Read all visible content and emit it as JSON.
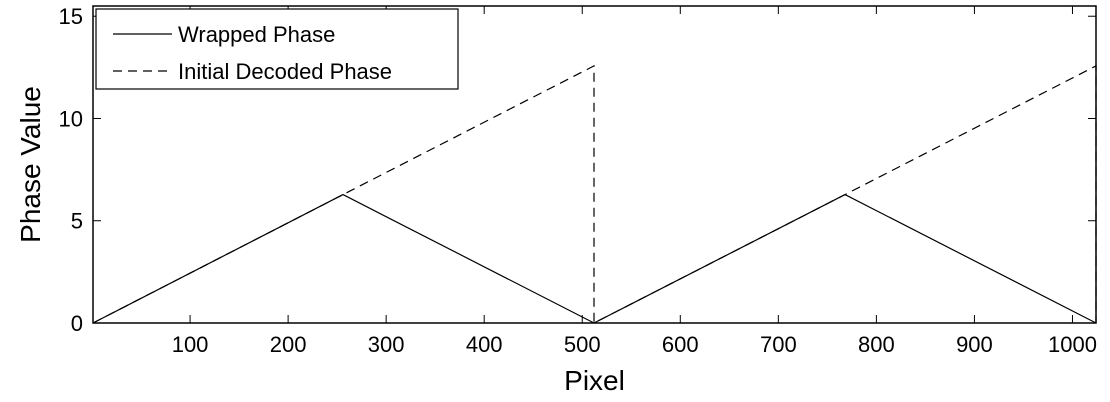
{
  "chart_data": {
    "type": "line",
    "xlabel": "Pixel",
    "ylabel": "Phase Value",
    "xlim": [
      1,
      1024
    ],
    "ylim": [
      0,
      15.5
    ],
    "xticks": [
      100,
      200,
      300,
      400,
      500,
      600,
      700,
      800,
      900,
      1000
    ],
    "yticks": [
      0,
      5,
      10,
      15
    ],
    "grid": false,
    "legend_position": "top-left",
    "series": [
      {
        "name": "Wrapped Phase",
        "style": "solid",
        "color": "#000000",
        "x": [
          1,
          256,
          512,
          768,
          1024
        ],
        "y": [
          0,
          6.28,
          0,
          6.28,
          0
        ]
      },
      {
        "name": "Initial Decoded Phase",
        "style": "dashed",
        "color": "#000000",
        "x": [
          1,
          256,
          512,
          512,
          768,
          1024,
          1024
        ],
        "y": [
          0,
          6.28,
          12.57,
          0,
          6.28,
          12.57,
          0
        ]
      }
    ]
  }
}
